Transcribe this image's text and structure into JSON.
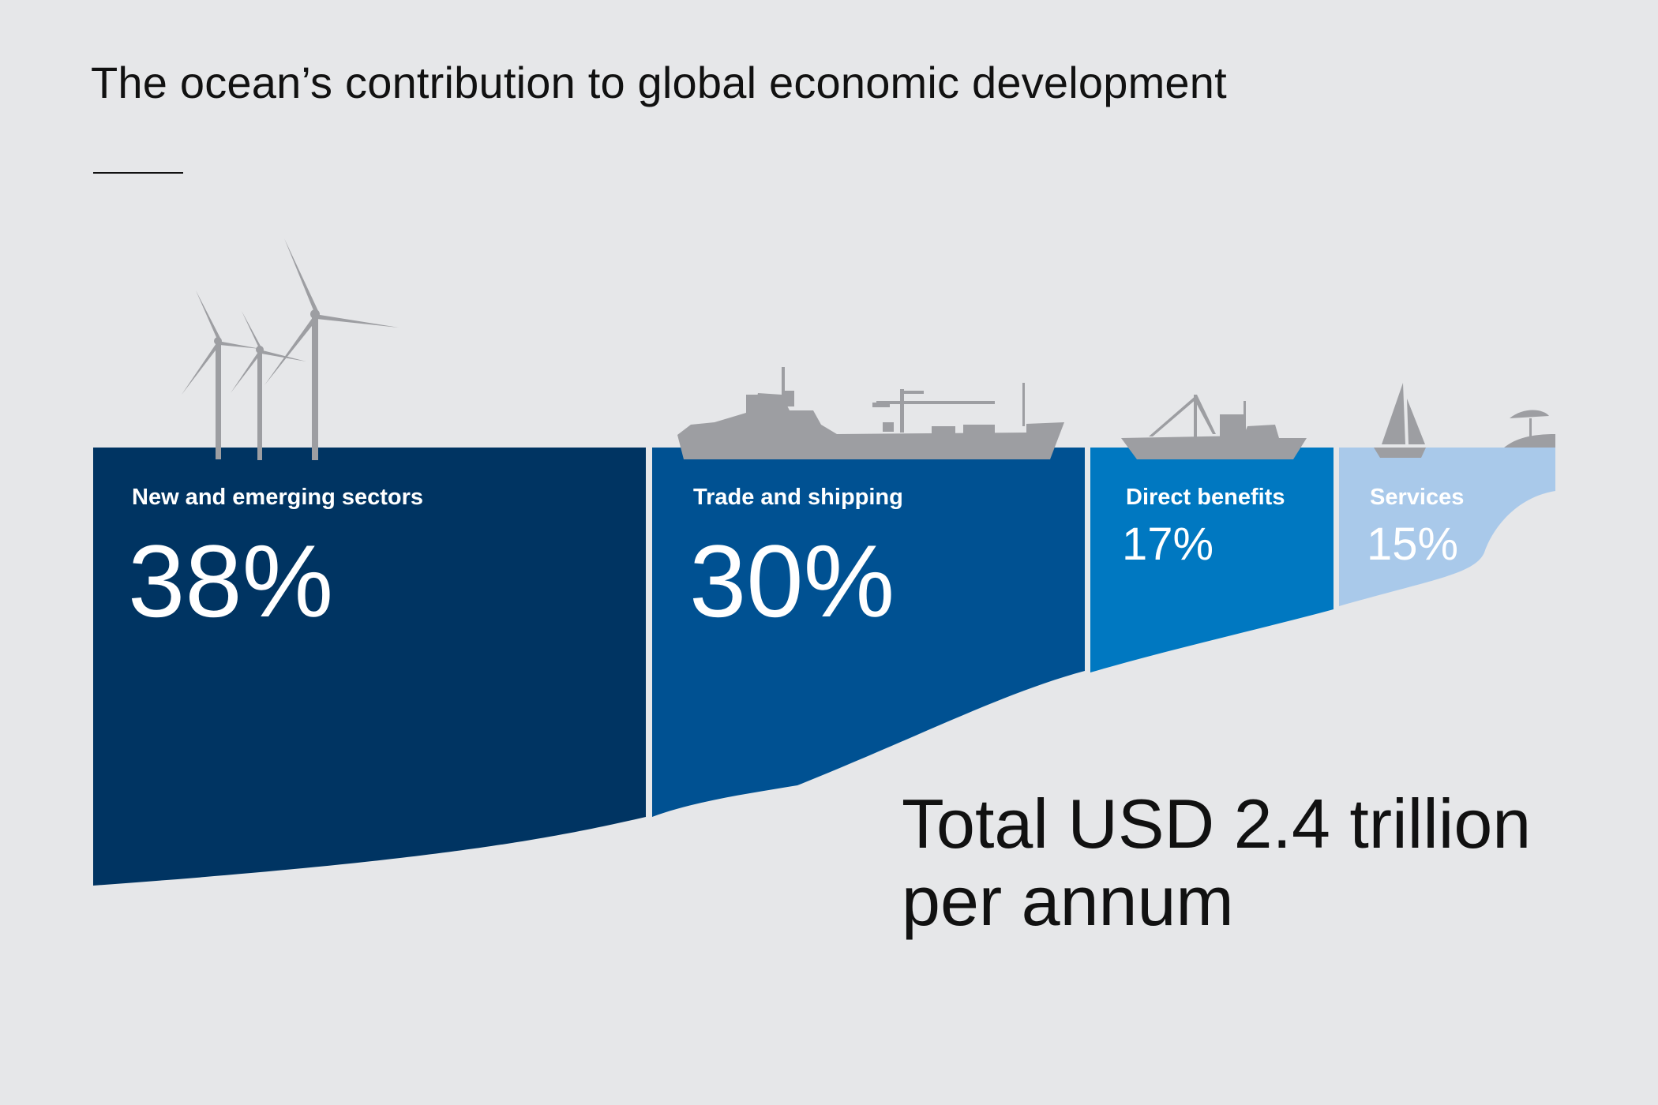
{
  "title": "The ocean’s contribution to global economic development",
  "total": {
    "line1": "Total USD 2.4 trillion",
    "line2": "per annum"
  },
  "chart_data": {
    "type": "area",
    "categories": [
      "New and emerging sectors",
      "Trade and shipping",
      "Direct benefits",
      "Services"
    ],
    "values": [
      38,
      30,
      17,
      15
    ],
    "value_labels": [
      "38%",
      "30%",
      "17%",
      "15%"
    ],
    "unit": "%",
    "colors": [
      "#003462",
      "#005192",
      "#0078c1",
      "#a9c9ea"
    ],
    "icons": [
      "wind-turbines-icon",
      "cargo-ship-icon",
      "fishing-boat-icon",
      "sailboat-beach-icon"
    ]
  }
}
